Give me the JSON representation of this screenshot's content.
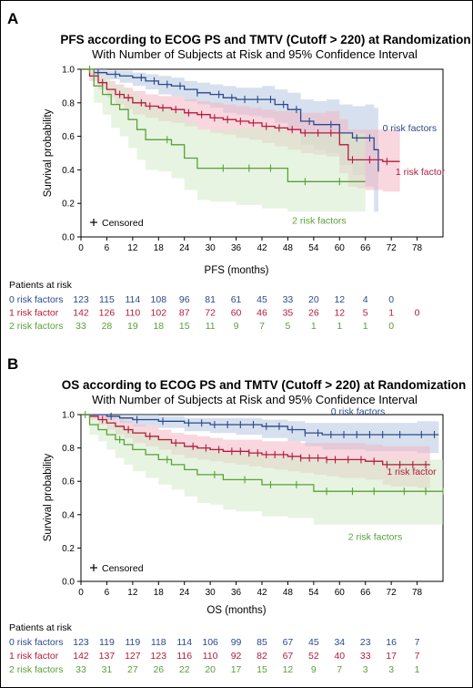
{
  "colors": {
    "series0": "#2b4a8c",
    "series1": "#b31b3c",
    "series2": "#5aa039",
    "band0": "#b7c6e0",
    "band1": "#f3b6c4",
    "band2": "#d3ebc8"
  },
  "risk_header": "Patients at risk",
  "censored_label": "Censored",
  "chart_data": [
    {
      "panel": "A",
      "type": "line",
      "title": "PFS according to ECOG PS and TMTV (Cutoff > 220) at Randomization",
      "subtitle": "With Number of Subjects at Risk and 95% Confidence Interval",
      "xlabel": "PFS (months)",
      "ylabel": "Survival probability",
      "xlim": [
        0,
        84
      ],
      "ylim": [
        0,
        1
      ],
      "xticks": [
        0,
        6,
        12,
        18,
        24,
        30,
        36,
        42,
        48,
        54,
        60,
        66,
        72,
        78
      ],
      "yticks": [
        0.0,
        0.2,
        0.4,
        0.6,
        0.8,
        1.0
      ],
      "ytick_labels": [
        "0.0",
        "0.2",
        "0.4",
        "0.6",
        "0.8",
        "1.0"
      ],
      "risk_times": [
        0,
        6,
        12,
        18,
        24,
        30,
        36,
        42,
        48,
        54,
        60,
        66,
        72,
        78
      ],
      "series": [
        {
          "name": "0 risk factors",
          "label": "0 risk factors",
          "risk": [
            "123",
            "115",
            "114",
            "108",
            "96",
            "81",
            "61",
            "45",
            "33",
            "20",
            "12",
            "4",
            "0",
            ""
          ],
          "x": [
            0,
            3,
            6,
            9,
            12,
            15,
            18,
            21,
            24,
            27,
            30,
            33,
            36,
            39,
            42,
            45,
            48,
            51,
            54,
            57,
            60,
            63,
            66,
            68,
            69
          ],
          "y": [
            1.0,
            0.98,
            0.97,
            0.96,
            0.95,
            0.93,
            0.91,
            0.9,
            0.88,
            0.86,
            0.85,
            0.83,
            0.82,
            0.82,
            0.82,
            0.79,
            0.76,
            0.69,
            0.67,
            0.67,
            0.62,
            0.59,
            0.59,
            0.52,
            0.39
          ],
          "lower": [
            1.0,
            0.96,
            0.94,
            0.92,
            0.9,
            0.88,
            0.85,
            0.84,
            0.81,
            0.79,
            0.77,
            0.74,
            0.73,
            0.72,
            0.71,
            0.68,
            0.64,
            0.55,
            0.52,
            0.5,
            0.43,
            0.37,
            0.3,
            0.15,
            0.08
          ],
          "upper": [
            1.0,
            1.0,
            0.99,
            0.99,
            0.98,
            0.97,
            0.96,
            0.95,
            0.93,
            0.92,
            0.91,
            0.9,
            0.89,
            0.89,
            0.9,
            0.88,
            0.86,
            0.82,
            0.81,
            0.82,
            0.79,
            0.78,
            0.79,
            0.77,
            0.75
          ],
          "censor_x": [
            4,
            8,
            14,
            17,
            20,
            23,
            27,
            32,
            35,
            38,
            41,
            44,
            47,
            50,
            53,
            58,
            64,
            67
          ],
          "label_x": 70,
          "label_y": 0.63
        },
        {
          "name": "1 risk factor",
          "label": "1 risk factor",
          "risk": [
            "142",
            "126",
            "110",
            "102",
            "87",
            "72",
            "60",
            "46",
            "35",
            "26",
            "12",
            "5",
            "1",
            "0"
          ],
          "x": [
            0,
            2,
            4,
            6,
            8,
            10,
            12,
            15,
            18,
            21,
            24,
            27,
            30,
            33,
            36,
            39,
            42,
            45,
            48,
            51,
            54,
            57,
            60,
            62,
            64,
            66,
            70,
            74
          ],
          "y": [
            1.0,
            0.96,
            0.92,
            0.88,
            0.85,
            0.83,
            0.8,
            0.78,
            0.77,
            0.76,
            0.74,
            0.73,
            0.71,
            0.7,
            0.69,
            0.68,
            0.66,
            0.65,
            0.64,
            0.62,
            0.62,
            0.62,
            0.55,
            0.46,
            0.46,
            0.46,
            0.45,
            0.45
          ],
          "lower": [
            1.0,
            0.93,
            0.88,
            0.83,
            0.79,
            0.76,
            0.73,
            0.71,
            0.69,
            0.68,
            0.66,
            0.64,
            0.62,
            0.61,
            0.59,
            0.58,
            0.56,
            0.54,
            0.52,
            0.5,
            0.49,
            0.48,
            0.38,
            0.3,
            0.29,
            0.28,
            0.27,
            0.26
          ],
          "upper": [
            1.0,
            0.99,
            0.96,
            0.93,
            0.91,
            0.89,
            0.87,
            0.85,
            0.84,
            0.84,
            0.82,
            0.81,
            0.8,
            0.79,
            0.78,
            0.77,
            0.76,
            0.75,
            0.75,
            0.74,
            0.74,
            0.75,
            0.7,
            0.64,
            0.64,
            0.64,
            0.64,
            0.64
          ],
          "censor_x": [
            5,
            9,
            11,
            14,
            16,
            19,
            22,
            25,
            28,
            31,
            34,
            37,
            40,
            43,
            46,
            49,
            52,
            55,
            58,
            63,
            67,
            71
          ],
          "label_x": 73,
          "label_y": 0.37
        },
        {
          "name": "2 risk factors",
          "label": "2 risk factors",
          "risk": [
            "33",
            "28",
            "19",
            "18",
            "15",
            "11",
            "9",
            "7",
            "5",
            "1",
            "1",
            "1",
            "0",
            ""
          ],
          "x": [
            0,
            3,
            5,
            7,
            9,
            11,
            13,
            15,
            18,
            21,
            24,
            27,
            30,
            36,
            42,
            48,
            54,
            60,
            66
          ],
          "y": [
            1.0,
            0.9,
            0.85,
            0.79,
            0.76,
            0.7,
            0.64,
            0.58,
            0.58,
            0.55,
            0.47,
            0.41,
            0.41,
            0.41,
            0.41,
            0.33,
            0.33,
            0.33,
            0.33
          ],
          "lower": [
            1.0,
            0.8,
            0.73,
            0.65,
            0.6,
            0.53,
            0.46,
            0.4,
            0.39,
            0.35,
            0.28,
            0.22,
            0.21,
            0.19,
            0.17,
            0.15,
            0.15,
            0.15,
            0.15
          ],
          "upper": [
            1.0,
            0.98,
            0.95,
            0.91,
            0.89,
            0.85,
            0.82,
            0.78,
            0.77,
            0.75,
            0.69,
            0.64,
            0.64,
            0.65,
            0.66,
            0.62,
            0.62,
            0.62,
            0.62
          ],
          "censor_x": [
            2,
            20,
            33,
            39,
            44,
            52,
            60
          ],
          "label_x": 49,
          "label_y": 0.08
        }
      ]
    },
    {
      "panel": "B",
      "type": "line",
      "title": "OS according to ECOG PS and TMTV (Cutoff > 220) at Randomization",
      "subtitle": "With Number of Subjects at Risk and 95% Confidence Interval",
      "xlabel": "OS (months)",
      "ylabel": "Survival probability",
      "xlim": [
        0,
        84
      ],
      "ylim": [
        0,
        1
      ],
      "xticks": [
        0,
        6,
        12,
        18,
        24,
        30,
        36,
        42,
        48,
        54,
        60,
        66,
        72,
        78
      ],
      "yticks": [
        0.0,
        0.2,
        0.4,
        0.6,
        0.8,
        1.0
      ],
      "ytick_labels": [
        "0.0",
        "0.2",
        "0.4",
        "0.6",
        "0.8",
        "1.0"
      ],
      "risk_times": [
        0,
        6,
        12,
        18,
        24,
        30,
        36,
        42,
        48,
        54,
        60,
        66,
        72,
        78
      ],
      "series": [
        {
          "name": "0 risk factors",
          "label": "0 risk factors",
          "risk": [
            "123",
            "119",
            "119",
            "118",
            "114",
            "106",
            "99",
            "85",
            "67",
            "45",
            "34",
            "23",
            "16",
            "7"
          ],
          "x": [
            0,
            3,
            6,
            9,
            12,
            18,
            24,
            30,
            36,
            42,
            48,
            52,
            56,
            60,
            66,
            72,
            78,
            83
          ],
          "y": [
            1.0,
            1.0,
            0.99,
            0.98,
            0.97,
            0.96,
            0.95,
            0.94,
            0.94,
            0.93,
            0.91,
            0.89,
            0.88,
            0.88,
            0.88,
            0.88,
            0.88,
            0.88
          ],
          "lower": [
            1.0,
            0.98,
            0.97,
            0.95,
            0.93,
            0.92,
            0.9,
            0.89,
            0.88,
            0.86,
            0.84,
            0.81,
            0.79,
            0.79,
            0.78,
            0.78,
            0.77,
            0.77
          ],
          "upper": [
            1.0,
            1.0,
            1.0,
            1.0,
            1.0,
            0.99,
            0.98,
            0.98,
            0.98,
            0.97,
            0.96,
            0.95,
            0.95,
            0.95,
            0.95,
            0.95,
            0.96,
            0.96
          ],
          "censor_x": [
            7,
            13,
            19,
            25,
            28,
            31,
            34,
            37,
            40,
            43,
            46,
            49,
            52,
            55,
            58,
            61,
            64,
            67,
            70,
            74,
            79,
            82
          ],
          "label_x": 58,
          "label_y": 1.0
        },
        {
          "name": "1 risk factor",
          "label": "1 risk factor",
          "risk": [
            "142",
            "137",
            "127",
            "123",
            "116",
            "110",
            "92",
            "82",
            "67",
            "52",
            "40",
            "33",
            "17",
            "7"
          ],
          "x": [
            0,
            2,
            4,
            6,
            8,
            10,
            12,
            15,
            18,
            21,
            24,
            27,
            30,
            33,
            36,
            39,
            42,
            45,
            48,
            51,
            54,
            57,
            60,
            66,
            70,
            72,
            78,
            81
          ],
          "y": [
            1.0,
            0.99,
            0.97,
            0.95,
            0.93,
            0.91,
            0.89,
            0.87,
            0.85,
            0.83,
            0.81,
            0.8,
            0.79,
            0.78,
            0.78,
            0.77,
            0.76,
            0.76,
            0.75,
            0.74,
            0.74,
            0.73,
            0.73,
            0.72,
            0.7,
            0.7,
            0.7,
            0.7
          ],
          "lower": [
            1.0,
            0.97,
            0.94,
            0.91,
            0.88,
            0.86,
            0.83,
            0.81,
            0.79,
            0.76,
            0.74,
            0.73,
            0.72,
            0.71,
            0.7,
            0.69,
            0.68,
            0.67,
            0.66,
            0.65,
            0.64,
            0.63,
            0.62,
            0.61,
            0.58,
            0.57,
            0.56,
            0.55
          ],
          "upper": [
            1.0,
            1.0,
            0.99,
            0.98,
            0.97,
            0.96,
            0.94,
            0.93,
            0.91,
            0.89,
            0.88,
            0.87,
            0.86,
            0.85,
            0.85,
            0.85,
            0.84,
            0.84,
            0.84,
            0.83,
            0.83,
            0.83,
            0.83,
            0.82,
            0.81,
            0.81,
            0.81,
            0.81
          ],
          "censor_x": [
            5,
            11,
            16,
            22,
            26,
            29,
            32,
            35,
            37,
            39,
            41,
            43,
            45,
            47,
            49,
            51,
            53,
            55,
            57,
            59,
            62,
            65,
            68,
            71,
            74,
            77,
            80
          ],
          "label_x": 71,
          "label_y": 0.64
        },
        {
          "name": "2 risk factors",
          "label": "2 risk factors",
          "risk": [
            "33",
            "31",
            "27",
            "26",
            "22",
            "20",
            "17",
            "15",
            "12",
            "9",
            "7",
            "3",
            "3",
            "1"
          ],
          "x": [
            0,
            2,
            4,
            6,
            8,
            10,
            12,
            15,
            18,
            21,
            24,
            27,
            30,
            33,
            36,
            42,
            48,
            54,
            60,
            66,
            72,
            78,
            84
          ],
          "y": [
            1.0,
            0.94,
            0.91,
            0.88,
            0.85,
            0.82,
            0.79,
            0.76,
            0.73,
            0.7,
            0.67,
            0.64,
            0.64,
            0.61,
            0.61,
            0.58,
            0.58,
            0.54,
            0.54,
            0.54,
            0.54,
            0.54,
            0.54
          ],
          "lower": [
            1.0,
            0.88,
            0.84,
            0.79,
            0.74,
            0.7,
            0.66,
            0.62,
            0.58,
            0.55,
            0.51,
            0.47,
            0.46,
            0.43,
            0.42,
            0.39,
            0.38,
            0.34,
            0.34,
            0.34,
            0.34,
            0.34,
            0.34
          ],
          "upper": [
            1.0,
            0.99,
            0.97,
            0.96,
            0.94,
            0.92,
            0.9,
            0.88,
            0.86,
            0.83,
            0.81,
            0.79,
            0.79,
            0.77,
            0.77,
            0.75,
            0.75,
            0.73,
            0.73,
            0.73,
            0.73,
            0.73,
            0.73
          ],
          "censor_x": [
            1,
            9,
            20,
            31,
            38,
            44,
            50,
            57,
            63,
            68,
            75,
            80,
            84
          ],
          "label_x": 62,
          "label_y": 0.25
        }
      ]
    }
  ]
}
